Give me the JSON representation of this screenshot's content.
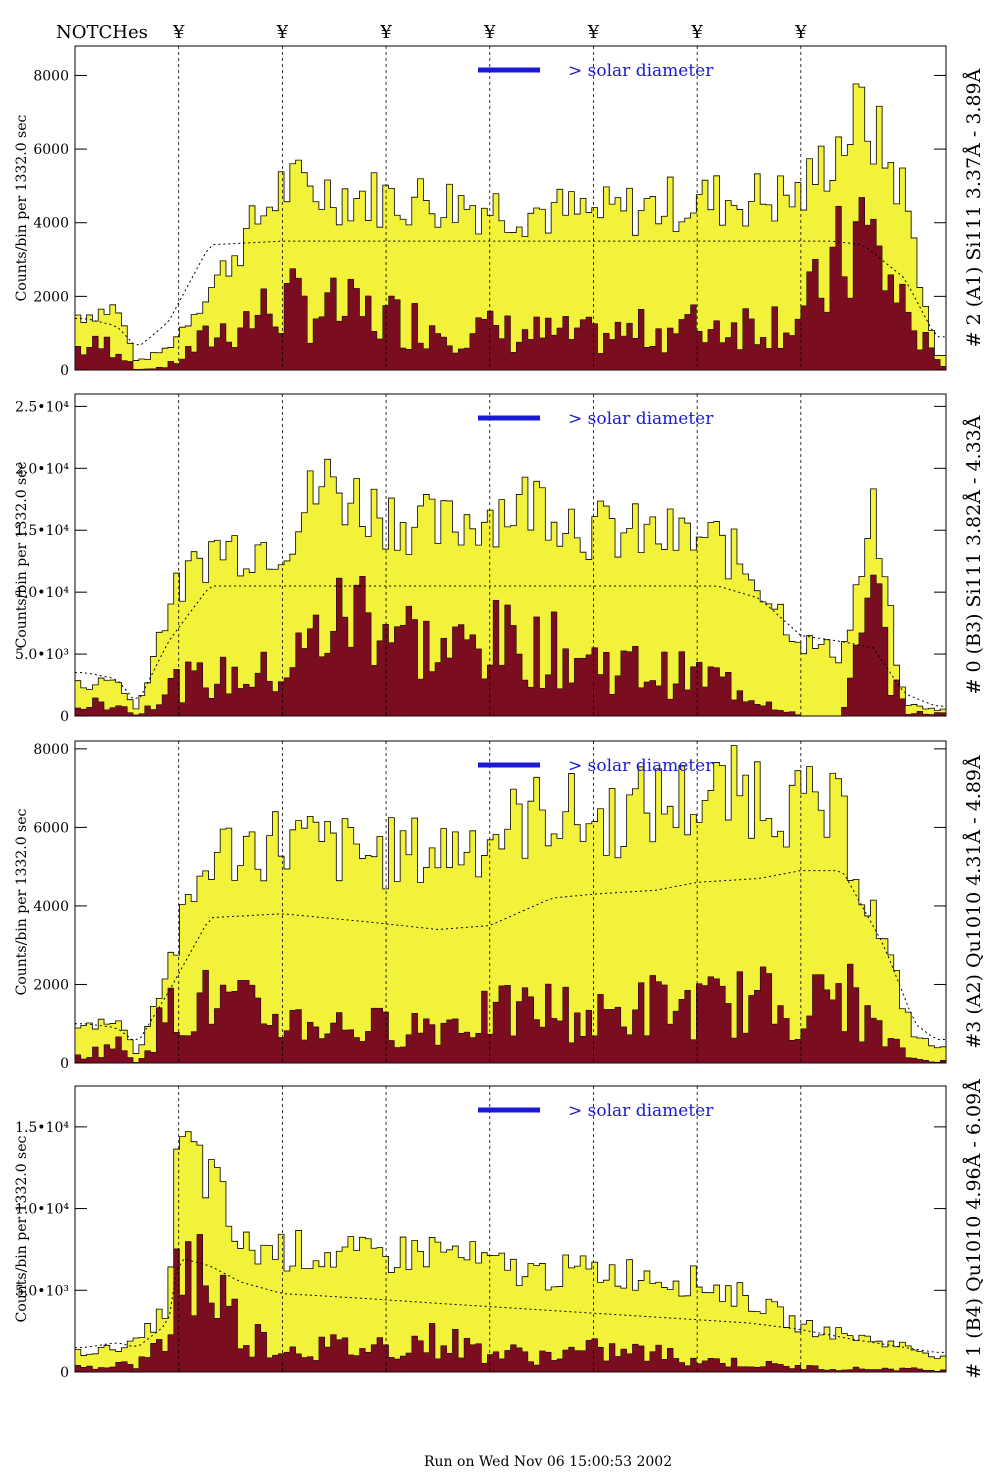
{
  "figure": {
    "notch_label": "NOTCHes",
    "notch_marker": "¥",
    "notch_positions": [
      1,
      2,
      3,
      4,
      5,
      6,
      7
    ],
    "footer": "Run on Wed Nov 06 15:00:53 2002",
    "colors": {
      "hist_fill": "#f2f23a",
      "dark_fill": "#7a0d1f",
      "accent": "#1a1ad6"
    }
  },
  "chart_data": [
    {
      "type": "area",
      "panel_label": "# 2 (A1) Si111  3.37Å - 3.89Å",
      "ylabel": "Counts/bin per   1332.0 sec",
      "annotation": "> solar diameter",
      "x": [
        0.1,
        0.4,
        0.6,
        0.9,
        1.3,
        2.0,
        2.8,
        3.5,
        4.2,
        5.0,
        6.0,
        7.0,
        7.3,
        7.6,
        8.0,
        8.3
      ],
      "values": [
        1500,
        1700,
        200,
        600,
        2200,
        5000,
        4700,
        4600,
        4400,
        4200,
        4600,
        4700,
        5900,
        7000,
        4800,
        400
      ],
      "dark_values": [
        600,
        700,
        0,
        100,
        900,
        1800,
        1500,
        1200,
        1000,
        900,
        1200,
        1400,
        2600,
        3800,
        1700,
        200
      ],
      "model_values": [
        1400,
        1200,
        600,
        1300,
        3400,
        3500,
        3500,
        3500,
        3500,
        3500,
        3500,
        3500,
        3500,
        3400,
        2500,
        900
      ],
      "ylim": [
        0,
        8800
      ],
      "yticks": [
        0,
        2000,
        4000,
        6000,
        8000
      ],
      "ytick_labels": [
        "0",
        "2000",
        "4000",
        "6000",
        "8000"
      ]
    },
    {
      "type": "area",
      "panel_label": "# 0 (B3) Si111  3.82Å - 4.33Å",
      "ylabel": "Counts/bin per   1332.0 sec",
      "annotation": "> solar diameter",
      "x": [
        0.1,
        0.4,
        0.6,
        0.9,
        1.3,
        2.0,
        2.4,
        2.8,
        3.5,
        4.0,
        4.5,
        5.0,
        5.6,
        6.2,
        6.6,
        7.0,
        7.4,
        7.7,
        8.0,
        8.3
      ],
      "values": [
        2500,
        3000,
        400,
        9000,
        13500,
        14000,
        19000,
        17000,
        15000,
        16500,
        17500,
        15000,
        14500,
        14000,
        11000,
        6000,
        5000,
        16000,
        1000,
        500
      ],
      "dark_values": [
        800,
        1200,
        0,
        2500,
        3000,
        3500,
        7000,
        9000,
        5000,
        6000,
        5500,
        4500,
        3500,
        3000,
        1500,
        0,
        0,
        9000,
        300,
        200
      ],
      "model_values": [
        3500,
        3000,
        1000,
        6000,
        10500,
        10500,
        10500,
        10500,
        10500,
        10500,
        10500,
        10500,
        10500,
        10500,
        9500,
        6500,
        6000,
        5500,
        1800,
        800
      ],
      "ylim": [
        0,
        26000
      ],
      "yticks": [
        0,
        5000,
        10000,
        15000,
        20000,
        25000
      ],
      "ytick_labels": [
        "0",
        "5.0•10³",
        "1.0•10⁴",
        "1.5•10⁴",
        "2.0•10⁴",
        "2.5•10⁴"
      ]
    },
    {
      "type": "area",
      "panel_label": "#3 (A2) Qu1010  4.31Å - 4.89Å",
      "ylabel": "Counts/bin per   1332.0 sec",
      "annotation": "> solar diameter",
      "x": [
        0.1,
        0.4,
        0.6,
        0.9,
        1.3,
        2.0,
        2.8,
        3.5,
        4.0,
        4.6,
        5.0,
        5.6,
        6.0,
        6.6,
        7.0,
        7.4,
        7.8,
        8.1,
        8.3
      ],
      "values": [
        900,
        1200,
        200,
        2500,
        5300,
        5700,
        5300,
        5400,
        5800,
        6500,
        6100,
        6600,
        6700,
        7000,
        6500,
        6200,
        3000,
        700,
        400
      ],
      "dark_values": [
        200,
        500,
        0,
        1300,
        1600,
        1100,
        900,
        1000,
        1200,
        1400,
        1100,
        1500,
        1400,
        1600,
        1300,
        1900,
        600,
        100,
        50
      ],
      "model_values": [
        1000,
        900,
        500,
        1800,
        3700,
        3800,
        3600,
        3400,
        3500,
        4200,
        4300,
        4400,
        4600,
        4700,
        4900,
        4900,
        3000,
        1000,
        600
      ],
      "ylim": [
        0,
        8200
      ],
      "yticks": [
        0,
        2000,
        4000,
        6000,
        8000
      ],
      "ytick_labels": [
        "0",
        "2000",
        "4000",
        "6000",
        "8000"
      ]
    },
    {
      "type": "area",
      "panel_label": "# 1 (B4) Qu1010 4.96Å - 6.09Å",
      "ylabel": "Counts/bin per   1332.0 sec",
      "annotation": "> solar diameter",
      "x": [
        0.1,
        0.4,
        0.6,
        0.9,
        1.0,
        1.3,
        1.6,
        2.0,
        2.8,
        3.5,
        4.0,
        4.5,
        5.0,
        5.5,
        6.0,
        6.5,
        7.0,
        7.5,
        8.0,
        8.3
      ],
      "values": [
        1200,
        1500,
        1800,
        4000,
        14000,
        12000,
        7500,
        7500,
        7000,
        7500,
        6500,
        6000,
        6200,
        6000,
        5500,
        4500,
        2800,
        2200,
        1600,
        1000
      ],
      "dark_values": [
        300,
        500,
        400,
        2000,
        7000,
        6000,
        2500,
        1500,
        1500,
        2000,
        1200,
        1000,
        1300,
        1200,
        800,
        500,
        300,
        200,
        200,
        100
      ],
      "model_values": [
        1500,
        1800,
        1500,
        3000,
        7000,
        6500,
        5500,
        4800,
        4500,
        4200,
        4000,
        3800,
        3600,
        3400,
        3200,
        3000,
        2600,
        2000,
        1500,
        1200
      ],
      "ylim": [
        0,
        17500
      ],
      "yticks": [
        0,
        5000,
        10000,
        15000
      ],
      "ytick_labels": [
        "0",
        "5.0•10³",
        "1.0•10⁴",
        "1.5•10⁴"
      ]
    }
  ]
}
